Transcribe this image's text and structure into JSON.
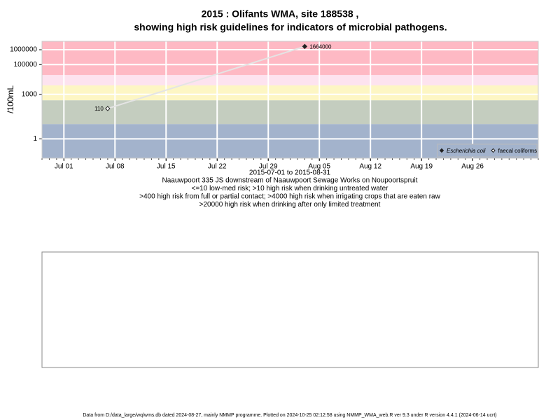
{
  "chart_data": {
    "type": "scatter",
    "title": "2015 : Olifants WMA, site 188538 ,",
    "subtitle": "showing high risk guidelines for indicators of microbial pathogens.",
    "y_label": "/100mL",
    "x_label": "2015-07-01 to 2015-08-31",
    "notes": [
      "Naauwpoort 335 JS downstream of Naauwpoort Sewage Works on Noupoortspruit",
      "<=10 low-med risk; >10 high risk when drinking untreated water",
      ">400 high risk from full or partial contact; >4000 high risk when irrigating crops that are eaten raw",
      ">20000 high risk when drinking after only limited treatment"
    ],
    "footer": "Data from D:/data_large/wq/wms.db dated 2024-08-27, mainly NMMP programme. Plotted on 2024-10-25 02:12:58 using NMMP_WMA_web.R ver 9.3 under R version 4.4.1 (2024-06-14 ucrt)",
    "log_y": true,
    "ylim": [
      0.05,
      3700000
    ],
    "yticks": [
      1,
      1000,
      100000,
      1000000
    ],
    "xlim": [
      "2015-06-28",
      "2015-09-04"
    ],
    "xticks": [
      {
        "value": "2015-07-01",
        "label": "Jul 01"
      },
      {
        "value": "2015-07-08",
        "label": "Jul 08"
      },
      {
        "value": "2015-07-15",
        "label": "Jul 15"
      },
      {
        "value": "2015-07-22",
        "label": "Jul 22"
      },
      {
        "value": "2015-07-29",
        "label": "Jul 29"
      },
      {
        "value": "2015-08-05",
        "label": "Aug 05"
      },
      {
        "value": "2015-08-12",
        "label": "Aug 12"
      },
      {
        "value": "2015-08-19",
        "label": "Aug 19"
      },
      {
        "value": "2015-08-26",
        "label": "Aug 26"
      }
    ],
    "band_thresholds": [
      10,
      400,
      4000,
      20000
    ],
    "band_colors": [
      "#a3b3cc",
      "#c4cdbf",
      "#fdf6c4",
      "#fde3ef",
      "#feb9c4"
    ],
    "grid": true,
    "legend": "bottom-right",
    "series": [
      {
        "name": "Escherichia coli",
        "color": "#222222",
        "marker": "filled",
        "x": [
          "2015-08-03"
        ],
        "values": [
          1664000
        ]
      },
      {
        "name": "faecal coliforms",
        "color": "#222222",
        "marker": "open",
        "x": [
          "2015-07-07"
        ],
        "values": [
          110
        ]
      }
    ]
  }
}
